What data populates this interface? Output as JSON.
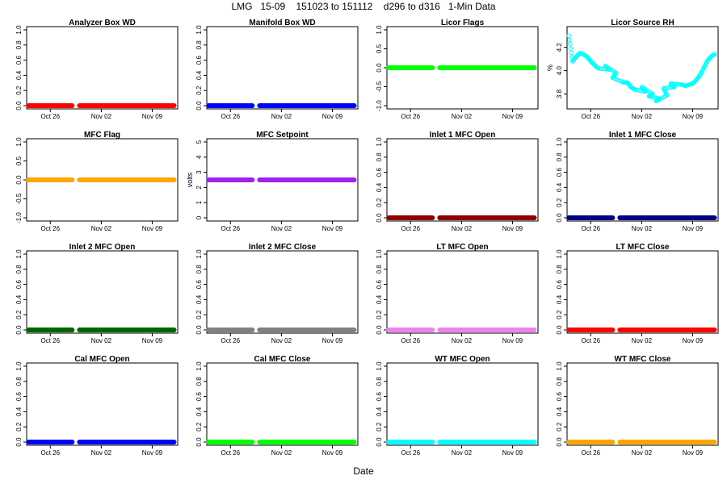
{
  "title": "LMG   15-09    151023 to 151112    d296 to d316   1-Min Data",
  "x_axis_title": "Date",
  "chart_data": [
    {
      "type": "scatter",
      "title": "Analyzer Box WD",
      "color": "#ff0000",
      "ylim": [
        0,
        1
      ],
      "yticks": [
        "0.0",
        "0.2",
        "0.4",
        "0.6",
        "0.8",
        "1.0"
      ],
      "xticks": [
        "Oct 26",
        "Nov 02",
        "Nov 09"
      ],
      "ylabel": "",
      "series": [
        {
          "segments": [
            {
              "x": [
                "2015-10-23",
                "2015-10-29"
              ],
              "y": 0
            },
            {
              "x": [
                "2015-10-30",
                "2015-11-04"
              ],
              "y": 0
            },
            {
              "x": [
                "2015-11-04",
                "2015-11-12"
              ],
              "y": 0
            }
          ]
        }
      ]
    },
    {
      "type": "scatter",
      "title": "Manifold Box WD",
      "color": "#0000ff",
      "ylim": [
        0,
        1
      ],
      "yticks": [
        "0.0",
        "0.2",
        "0.4",
        "0.6",
        "0.8",
        "1.0"
      ],
      "xticks": [
        "Oct 26",
        "Nov 02",
        "Nov 09"
      ],
      "ylabel": "",
      "series": [
        {
          "segments": [
            {
              "x": [
                "2015-10-23",
                "2015-10-29"
              ],
              "y": 0
            },
            {
              "x": [
                "2015-10-30",
                "2015-11-04"
              ],
              "y": 0
            },
            {
              "x": [
                "2015-11-04",
                "2015-11-12"
              ],
              "y": 0
            }
          ]
        }
      ]
    },
    {
      "type": "scatter",
      "title": "Licor Flags",
      "color": "#00ff00",
      "ylim": [
        -1,
        1
      ],
      "yticks": [
        "-1.0",
        "-0.5",
        "0.0",
        "0.5",
        "1.0"
      ],
      "xticks": [
        "Oct 26",
        "Nov 02",
        "Nov 09"
      ],
      "ylabel": "",
      "series": [
        {
          "segments": [
            {
              "x": [
                "2015-10-23",
                "2015-10-29"
              ],
              "y": 0
            },
            {
              "x": [
                "2015-10-30",
                "2015-11-04"
              ],
              "y": 0
            },
            {
              "x": [
                "2015-11-04",
                "2015-11-12"
              ],
              "y": 0
            }
          ]
        }
      ]
    },
    {
      "type": "scatter",
      "title": "Licor Source RH",
      "color": "#00ffff",
      "ylim": [
        3.7,
        4.35
      ],
      "yticks": [
        "3.8",
        "4.0",
        "4.2"
      ],
      "xticks": [
        "Oct 26",
        "Nov 02",
        "Nov 09"
      ],
      "ylabel": "%",
      "series": [
        {
          "points": [
            [
              "2015-10-23",
              4.3
            ],
            [
              "2015-10-23",
              4.08
            ],
            [
              "2015-10-24",
              4.12
            ],
            [
              "2015-10-24",
              4.15
            ],
            [
              "2015-10-25",
              4.14
            ],
            [
              "2015-10-25",
              4.12
            ],
            [
              "2015-10-26",
              4.08
            ],
            [
              "2015-10-26",
              4.05
            ],
            [
              "2015-10-27",
              4.02
            ],
            [
              "2015-10-28",
              4.01
            ],
            [
              "2015-10-28",
              4.04
            ],
            [
              "2015-10-29",
              3.98
            ],
            [
              "2015-10-29",
              3.94
            ],
            [
              "2015-10-30",
              3.9
            ],
            [
              "2015-10-31",
              3.9
            ],
            [
              "2015-10-31",
              3.86
            ],
            [
              "2015-11-01",
              3.84
            ],
            [
              "2015-11-02",
              3.82
            ],
            [
              "2015-11-02",
              3.86
            ],
            [
              "2015-11-03",
              3.8
            ],
            [
              "2015-11-03",
              3.78
            ],
            [
              "2015-11-04",
              3.76
            ],
            [
              "2015-11-04",
              3.74
            ],
            [
              "2015-11-05",
              3.79
            ],
            [
              "2015-11-05",
              3.85
            ],
            [
              "2015-11-06",
              3.86
            ],
            [
              "2015-11-06",
              3.89
            ],
            [
              "2015-11-07",
              3.88
            ],
            [
              "2015-11-08",
              3.87
            ],
            [
              "2015-11-08",
              3.88
            ],
            [
              "2015-11-09",
              3.89
            ],
            [
              "2015-11-09",
              3.92
            ],
            [
              "2015-11-10",
              3.96
            ],
            [
              "2015-11-10",
              4.02
            ],
            [
              "2015-11-11",
              4.08
            ],
            [
              "2015-11-11",
              4.12
            ],
            [
              "2015-11-12",
              4.14
            ]
          ]
        }
      ]
    },
    {
      "type": "scatter",
      "title": "MFC Flag",
      "color": "#ffa500",
      "ylim": [
        -1,
        1
      ],
      "yticks": [
        "-1.0",
        "-0.5",
        "0.0",
        "0.5",
        "1.0"
      ],
      "xticks": [
        "Oct 26",
        "Nov 02",
        "Nov 09"
      ],
      "ylabel": "",
      "series": [
        {
          "segments": [
            {
              "x": [
                "2015-10-23",
                "2015-10-29"
              ],
              "y": 0
            },
            {
              "x": [
                "2015-10-30",
                "2015-11-04"
              ],
              "y": 0
            },
            {
              "x": [
                "2015-11-04",
                "2015-11-12"
              ],
              "y": 0
            }
          ]
        }
      ]
    },
    {
      "type": "scatter",
      "title": "MFC Setpoint",
      "color": "#a020f0",
      "ylim": [
        0,
        5
      ],
      "yticks": [
        "0",
        "1",
        "2",
        "3",
        "4",
        "5"
      ],
      "xticks": [
        "Oct 26",
        "Nov 02",
        "Nov 09"
      ],
      "ylabel": "volts",
      "series": [
        {
          "segments": [
            {
              "x": [
                "2015-10-23",
                "2015-10-29"
              ],
              "y": 2.5
            },
            {
              "x": [
                "2015-10-30",
                "2015-11-04"
              ],
              "y": 2.5
            },
            {
              "x": [
                "2015-11-04",
                "2015-11-12"
              ],
              "y": 2.5
            }
          ]
        }
      ]
    },
    {
      "type": "scatter",
      "title": "Inlet 1 MFC Open",
      "color": "#8b0000",
      "ylim": [
        0,
        1
      ],
      "yticks": [
        "0.0",
        "0.2",
        "0.4",
        "0.6",
        "0.8",
        "1.0"
      ],
      "xticks": [
        "Oct 26",
        "Nov 02",
        "Nov 09"
      ],
      "ylabel": "",
      "series": [
        {
          "segments": [
            {
              "x": [
                "2015-10-23",
                "2015-10-29"
              ],
              "y": 0
            },
            {
              "x": [
                "2015-10-30",
                "2015-11-04"
              ],
              "y": 0
            },
            {
              "x": [
                "2015-11-04",
                "2015-11-12"
              ],
              "y": 0
            }
          ]
        }
      ]
    },
    {
      "type": "scatter",
      "title": "Inlet 1 MFC Close",
      "color": "#000080",
      "ylim": [
        0,
        1
      ],
      "yticks": [
        "0.0",
        "0.2",
        "0.4",
        "0.6",
        "0.8",
        "1.0"
      ],
      "xticks": [
        "Oct 26",
        "Nov 02",
        "Nov 09"
      ],
      "ylabel": "",
      "series": [
        {
          "segments": [
            {
              "x": [
                "2015-10-23",
                "2015-10-29"
              ],
              "y": 0
            },
            {
              "x": [
                "2015-10-30",
                "2015-11-04"
              ],
              "y": 0
            },
            {
              "x": [
                "2015-11-04",
                "2015-11-12"
              ],
              "y": 0
            }
          ]
        }
      ]
    },
    {
      "type": "scatter",
      "title": "Inlet 2 MFC Open",
      "color": "#006400",
      "ylim": [
        0,
        1
      ],
      "yticks": [
        "0.0",
        "0.2",
        "0.4",
        "0.6",
        "0.8",
        "1.0"
      ],
      "xticks": [
        "Oct 26",
        "Nov 02",
        "Nov 09"
      ],
      "ylabel": "",
      "series": [
        {
          "segments": [
            {
              "x": [
                "2015-10-23",
                "2015-10-29"
              ],
              "y": 0
            },
            {
              "x": [
                "2015-10-30",
                "2015-11-04"
              ],
              "y": 0
            },
            {
              "x": [
                "2015-11-04",
                "2015-11-12"
              ],
              "y": 0
            }
          ]
        }
      ]
    },
    {
      "type": "scatter",
      "title": "Inlet 2 MFC Close",
      "color": "#808080",
      "ylim": [
        0,
        1
      ],
      "yticks": [
        "0.0",
        "0.2",
        "0.4",
        "0.6",
        "0.8",
        "1.0"
      ],
      "xticks": [
        "Oct 26",
        "Nov 02",
        "Nov 09"
      ],
      "ylabel": "",
      "series": [
        {
          "segments": [
            {
              "x": [
                "2015-10-23",
                "2015-10-29"
              ],
              "y": 0
            },
            {
              "x": [
                "2015-10-30",
                "2015-11-04"
              ],
              "y": 0
            },
            {
              "x": [
                "2015-11-04",
                "2015-11-12"
              ],
              "y": 0
            }
          ]
        }
      ]
    },
    {
      "type": "scatter",
      "title": "LT MFC Open",
      "color": "#ee82ee",
      "ylim": [
        0,
        1
      ],
      "yticks": [
        "0.0",
        "0.2",
        "0.4",
        "0.6",
        "0.8",
        "1.0"
      ],
      "xticks": [
        "Oct 26",
        "Nov 02",
        "Nov 09"
      ],
      "ylabel": "",
      "series": [
        {
          "segments": [
            {
              "x": [
                "2015-10-23",
                "2015-10-29"
              ],
              "y": 0
            },
            {
              "x": [
                "2015-10-30",
                "2015-11-04"
              ],
              "y": 0
            },
            {
              "x": [
                "2015-11-04",
                "2015-11-12"
              ],
              "y": 0
            }
          ]
        }
      ]
    },
    {
      "type": "scatter",
      "title": "LT MFC Close",
      "color": "#ff0000",
      "ylim": [
        0,
        1
      ],
      "yticks": [
        "0.0",
        "0.2",
        "0.4",
        "0.6",
        "0.8",
        "1.0"
      ],
      "xticks": [
        "Oct 26",
        "Nov 02",
        "Nov 09"
      ],
      "ylabel": "",
      "series": [
        {
          "segments": [
            {
              "x": [
                "2015-10-23",
                "2015-10-29"
              ],
              "y": 0
            },
            {
              "x": [
                "2015-10-30",
                "2015-11-04"
              ],
              "y": 0
            },
            {
              "x": [
                "2015-11-04",
                "2015-11-12"
              ],
              "y": 0
            }
          ]
        }
      ]
    },
    {
      "type": "scatter",
      "title": "Cal MFC Open",
      "color": "#0000ff",
      "ylim": [
        0,
        1
      ],
      "yticks": [
        "0.0",
        "0.2",
        "0.4",
        "0.6",
        "0.8",
        "1.0"
      ],
      "xticks": [
        "Oct 26",
        "Nov 02",
        "Nov 09"
      ],
      "ylabel": "",
      "series": [
        {
          "segments": [
            {
              "x": [
                "2015-10-23",
                "2015-10-29"
              ],
              "y": 0
            },
            {
              "x": [
                "2015-10-30",
                "2015-11-04"
              ],
              "y": 0
            },
            {
              "x": [
                "2015-11-04",
                "2015-11-12"
              ],
              "y": 0
            }
          ]
        }
      ]
    },
    {
      "type": "scatter",
      "title": "Cal MFC Close",
      "color": "#00ff00",
      "ylim": [
        0,
        1
      ],
      "yticks": [
        "0.0",
        "0.2",
        "0.4",
        "0.6",
        "0.8",
        "1.0"
      ],
      "xticks": [
        "Oct 26",
        "Nov 02",
        "Nov 09"
      ],
      "ylabel": "",
      "series": [
        {
          "segments": [
            {
              "x": [
                "2015-10-23",
                "2015-10-29"
              ],
              "y": 0
            },
            {
              "x": [
                "2015-10-30",
                "2015-11-04"
              ],
              "y": 0
            },
            {
              "x": [
                "2015-11-04",
                "2015-11-12"
              ],
              "y": 0
            }
          ]
        }
      ]
    },
    {
      "type": "scatter",
      "title": "WT MFC Open",
      "color": "#00ffff",
      "ylim": [
        0,
        1
      ],
      "yticks": [
        "0.0",
        "0.2",
        "0.4",
        "0.6",
        "0.8",
        "1.0"
      ],
      "xticks": [
        "Oct 26",
        "Nov 02",
        "Nov 09"
      ],
      "ylabel": "",
      "series": [
        {
          "segments": [
            {
              "x": [
                "2015-10-23",
                "2015-10-29"
              ],
              "y": 0
            },
            {
              "x": [
                "2015-10-30",
                "2015-11-04"
              ],
              "y": 0
            },
            {
              "x": [
                "2015-11-04",
                "2015-11-12"
              ],
              "y": 0
            }
          ]
        }
      ]
    },
    {
      "type": "scatter",
      "title": "WT MFC Close",
      "color": "#ffa500",
      "ylim": [
        0,
        1
      ],
      "yticks": [
        "0.0",
        "0.2",
        "0.4",
        "0.6",
        "0.8",
        "1.0"
      ],
      "xticks": [
        "Oct 26",
        "Nov 02",
        "Nov 09"
      ],
      "ylabel": "",
      "series": [
        {
          "segments": [
            {
              "x": [
                "2015-10-23",
                "2015-10-29"
              ],
              "y": 0
            },
            {
              "x": [
                "2015-10-30",
                "2015-11-04"
              ],
              "y": 0
            },
            {
              "x": [
                "2015-11-04",
                "2015-11-12"
              ],
              "y": 0
            }
          ]
        }
      ]
    }
  ]
}
